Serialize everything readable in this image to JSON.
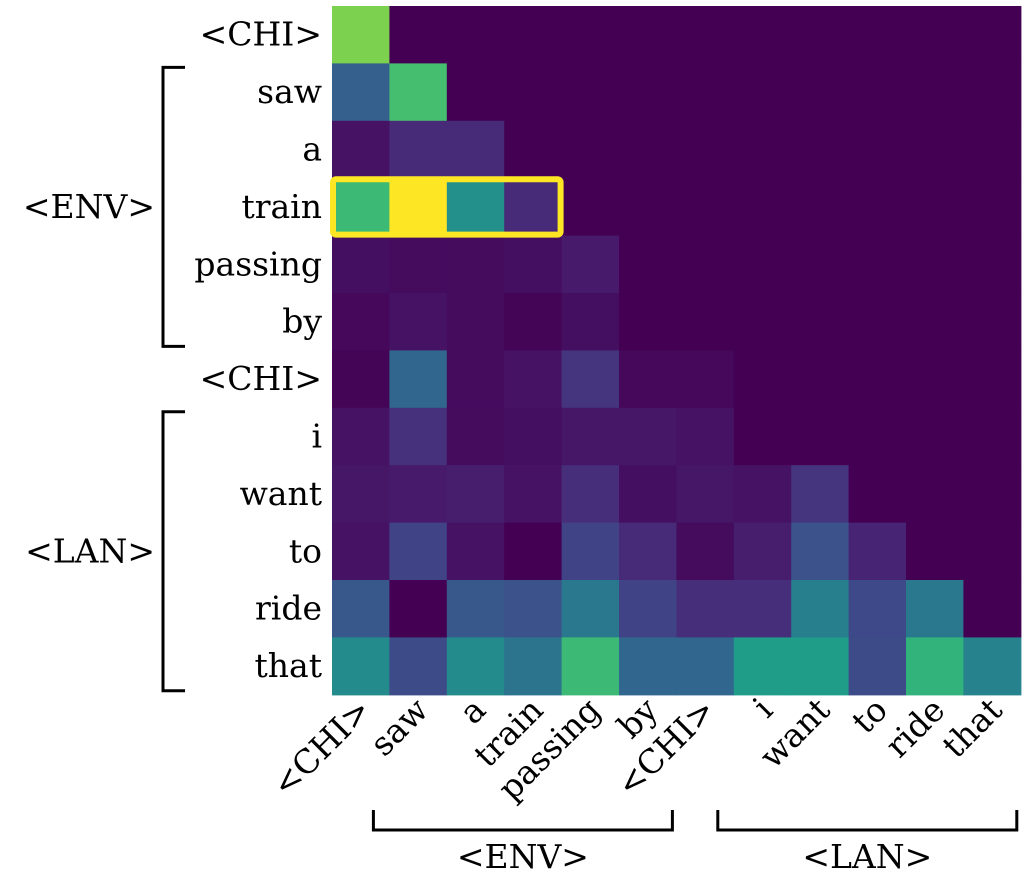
{
  "chart_data": {
    "type": "heatmap",
    "title": "",
    "colormap": "viridis",
    "value_range": [
      0,
      1
    ],
    "row_labels": [
      "<CHI>",
      "saw",
      "a",
      "train",
      "passing",
      "by",
      "<CHI>",
      "i",
      "want",
      "to",
      "ride",
      "that"
    ],
    "col_labels": [
      "<CHI>",
      "saw",
      "a",
      "train",
      "passing",
      "by",
      "<CHI>",
      "i",
      "want",
      "to",
      "ride",
      "that"
    ],
    "values": [
      [
        0.8,
        0,
        0,
        0,
        0,
        0,
        0,
        0,
        0,
        0,
        0,
        0
      ],
      [
        0.3,
        0.7,
        0,
        0,
        0,
        0,
        0,
        0,
        0,
        0,
        0,
        0
      ],
      [
        0.05,
        0.12,
        0.12,
        0,
        0,
        0,
        0,
        0,
        0,
        0,
        0,
        0
      ],
      [
        0.68,
        1.0,
        0.5,
        0.12,
        0,
        0,
        0,
        0,
        0,
        0,
        0,
        0
      ],
      [
        0.04,
        0.03,
        0.03,
        0.04,
        0.07,
        0,
        0,
        0,
        0,
        0,
        0,
        0
      ],
      [
        0.02,
        0.05,
        0.03,
        0.01,
        0.04,
        0,
        0,
        0,
        0,
        0,
        0,
        0
      ],
      [
        0.01,
        0.33,
        0.03,
        0.05,
        0.15,
        0.02,
        0.02,
        0,
        0,
        0,
        0,
        0
      ],
      [
        0.05,
        0.14,
        0.03,
        0.04,
        0.06,
        0.06,
        0.05,
        0,
        0,
        0,
        0,
        0
      ],
      [
        0.06,
        0.07,
        0.08,
        0.05,
        0.13,
        0.04,
        0.06,
        0.05,
        0.15,
        0,
        0,
        0
      ],
      [
        0.05,
        0.2,
        0.05,
        0.0,
        0.2,
        0.12,
        0.03,
        0.08,
        0.25,
        0.1,
        0,
        0
      ],
      [
        0.27,
        0.0,
        0.27,
        0.25,
        0.4,
        0.2,
        0.13,
        0.13,
        0.43,
        0.22,
        0.4,
        0
      ],
      [
        0.48,
        0.23,
        0.48,
        0.38,
        0.68,
        0.33,
        0.33,
        0.55,
        0.55,
        0.23,
        0.65,
        0.45
      ]
    ],
    "groups": {
      "rows": [
        {
          "label": "<ENV>",
          "from": 1,
          "to": 5
        },
        {
          "label": "<LAN>",
          "from": 7,
          "to": 11
        }
      ],
      "cols": [
        {
          "label": "<ENV>",
          "from": 1,
          "to": 5
        },
        {
          "label": "<LAN>",
          "from": 7,
          "to": 11
        }
      ]
    },
    "highlight": {
      "row": 3,
      "col_from": 0,
      "col_to": 3,
      "color": "#fde725"
    }
  }
}
